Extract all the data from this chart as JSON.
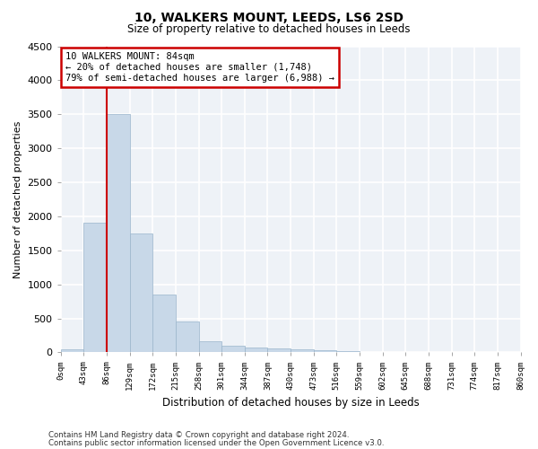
{
  "title1": "10, WALKERS MOUNT, LEEDS, LS6 2SD",
  "title2": "Size of property relative to detached houses in Leeds",
  "xlabel": "Distribution of detached houses by size in Leeds",
  "ylabel": "Number of detached properties",
  "bin_edges": [
    0,
    43,
    86,
    129,
    172,
    215,
    258,
    301,
    344,
    387,
    430,
    473,
    516,
    559,
    602,
    645,
    688,
    731,
    774,
    817,
    860
  ],
  "bar_heights": [
    50,
    1900,
    3500,
    1750,
    850,
    450,
    160,
    100,
    75,
    55,
    40,
    25,
    15,
    10,
    7,
    5,
    3,
    2,
    1,
    1
  ],
  "bar_color": "#c8d8e8",
  "bar_edge_color": "#9ab5cc",
  "property_line_x": 86,
  "annotation_line1": "10 WALKERS MOUNT: 84sqm",
  "annotation_line2": "← 20% of detached houses are smaller (1,748)",
  "annotation_line3": "79% of semi-detached houses are larger (6,988) →",
  "annotation_box_color": "#cc0000",
  "ylim": [
    0,
    4500
  ],
  "yticks": [
    0,
    500,
    1000,
    1500,
    2000,
    2500,
    3000,
    3500,
    4000,
    4500
  ],
  "background_color": "#eef2f7",
  "grid_color": "#ffffff",
  "footer1": "Contains HM Land Registry data © Crown copyright and database right 2024.",
  "footer2": "Contains public sector information licensed under the Open Government Licence v3.0."
}
